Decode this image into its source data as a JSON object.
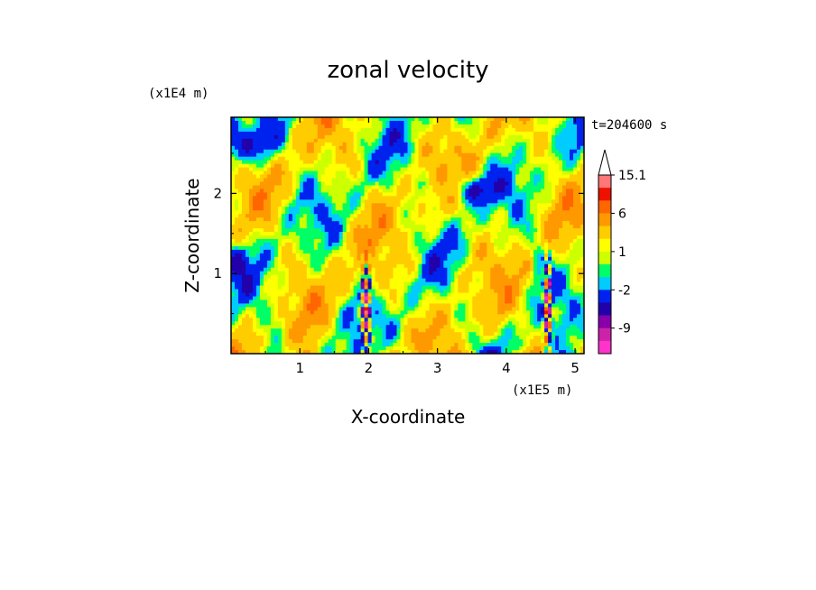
{
  "chart_data": {
    "type": "heatmap",
    "title": "zonal velocity",
    "xlabel": "X-coordinate",
    "ylabel": "Z-coordinate",
    "x_unit": "(x1E5 m)",
    "y_unit": "(x1E4 m)",
    "time_label": "t=204600 s",
    "x_ticks": [
      1,
      2,
      3,
      4,
      5
    ],
    "y_ticks": [
      1,
      2
    ],
    "xlim": [
      0,
      5.13
    ],
    "ylim": [
      0,
      2.95
    ],
    "colorbar": {
      "levels": [
        {
          "min": null,
          "max": -12,
          "color": "#ff33cc"
        },
        {
          "min": -12,
          "max": -9,
          "color": "#cc22aa"
        },
        {
          "min": -9,
          "max": -6,
          "color": "#8800aa"
        },
        {
          "min": -6,
          "max": -4,
          "color": "#2200aa"
        },
        {
          "min": -4,
          "max": -2,
          "color": "#0022ee"
        },
        {
          "min": -2,
          "max": -1,
          "color": "#00ccff"
        },
        {
          "min": -1,
          "max": 0,
          "color": "#00ff66"
        },
        {
          "min": 0,
          "max": 1,
          "color": "#ccff00"
        },
        {
          "min": 1,
          "max": 2,
          "color": "#ffff00"
        },
        {
          "min": 2,
          "max": 4,
          "color": "#ffcc00"
        },
        {
          "min": 4,
          "max": 6,
          "color": "#ff9900"
        },
        {
          "min": 6,
          "max": 9,
          "color": "#ff6600"
        },
        {
          "min": 9,
          "max": 12,
          "color": "#ee1100"
        },
        {
          "min": 12,
          "max": 15.1,
          "color": "#ff7777"
        },
        {
          "min": 15.1,
          "max": null,
          "color": "#ffbbbb"
        }
      ],
      "labels": [
        "15.1",
        "6",
        "1",
        "-2",
        "-9"
      ],
      "label_values": [
        15.1,
        6,
        1,
        -2,
        -9
      ]
    }
  }
}
